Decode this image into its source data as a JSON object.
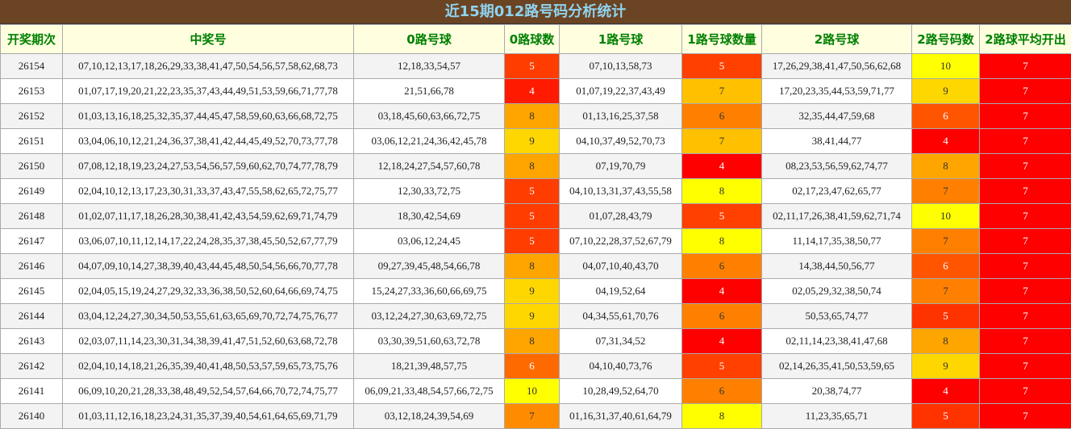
{
  "title": "近15期012路号码分析统计",
  "table": {
    "headers": [
      "开奖期次",
      "中奖号",
      "0路号球",
      "0路球数",
      "1路号球",
      "1路号球数量",
      "2路号球",
      "2路号码数",
      "2路球平均开出"
    ],
    "rows": [
      {
        "cells": [
          "26154",
          "07,10,12,13,17,18,26,29,33,38,41,47,50,54,56,57,58,62,68,73",
          "12,18,33,54,57",
          "5",
          "07,10,13,58,73",
          "5",
          "17,26,29,38,41,47,50,56,62,68",
          "10",
          "7"
        ],
        "colors": [
          "#ff3d00",
          "#ff4000",
          "#ffff00",
          "#ff0000"
        ]
      },
      {
        "cells": [
          "26153",
          "01,07,17,19,20,21,22,23,35,37,43,44,49,51,53,59,66,71,77,78",
          "21,51,66,78",
          "4",
          "01,07,19,22,37,43,49",
          "7",
          "17,20,23,35,44,53,59,71,77",
          "9",
          "7"
        ],
        "colors": [
          "#ff1a00",
          "#ffc000",
          "#ffd700",
          "#ff0000"
        ]
      },
      {
        "cells": [
          "26152",
          "01,03,13,16,18,25,32,35,37,44,45,47,58,59,60,63,66,68,72,75",
          "03,18,45,60,63,66,72,75",
          "8",
          "01,13,16,25,37,58",
          "6",
          "32,35,44,47,59,68",
          "6",
          "7"
        ],
        "colors": [
          "#ffa500",
          "#ff8000",
          "#ff5500",
          "#ff0000"
        ]
      },
      {
        "cells": [
          "26151",
          "03,04,06,10,12,21,24,36,37,38,41,42,44,45,49,52,70,73,77,78",
          "03,06,12,21,24,36,42,45,78",
          "9",
          "04,10,37,49,52,70,73",
          "7",
          "38,41,44,77",
          "4",
          "7"
        ],
        "colors": [
          "#ffd700",
          "#ffc000",
          "#ff0000",
          "#ff0000"
        ]
      },
      {
        "cells": [
          "26150",
          "07,08,12,18,19,23,24,27,53,54,56,57,59,60,62,70,74,77,78,79",
          "12,18,24,27,54,57,60,78",
          "8",
          "07,19,70,79",
          "4",
          "08,23,53,56,59,62,74,77",
          "8",
          "7"
        ],
        "colors": [
          "#ffa500",
          "#ff0000",
          "#ffa500",
          "#ff0000"
        ]
      },
      {
        "cells": [
          "26149",
          "02,04,10,12,13,17,23,30,31,33,37,43,47,55,58,62,65,72,75,77",
          "12,30,33,72,75",
          "5",
          "04,10,13,31,37,43,55,58",
          "8",
          "02,17,23,47,62,65,77",
          "7",
          "7"
        ],
        "colors": [
          "#ff3d00",
          "#ffff00",
          "#ff8000",
          "#ff0000"
        ]
      },
      {
        "cells": [
          "26148",
          "01,02,07,11,17,18,26,28,30,38,41,42,43,54,59,62,69,71,74,79",
          "18,30,42,54,69",
          "5",
          "01,07,28,43,79",
          "5",
          "02,11,17,26,38,41,59,62,71,74",
          "10",
          "7"
        ],
        "colors": [
          "#ff3d00",
          "#ff4000",
          "#ffff00",
          "#ff0000"
        ]
      },
      {
        "cells": [
          "26147",
          "03,06,07,10,11,12,14,17,22,24,28,35,37,38,45,50,52,67,77,79",
          "03,06,12,24,45",
          "5",
          "07,10,22,28,37,52,67,79",
          "8",
          "11,14,17,35,38,50,77",
          "7",
          "7"
        ],
        "colors": [
          "#ff3d00",
          "#ffff00",
          "#ff8000",
          "#ff0000"
        ]
      },
      {
        "cells": [
          "26146",
          "04,07,09,10,14,27,38,39,40,43,44,45,48,50,54,56,66,70,77,78",
          "09,27,39,45,48,54,66,78",
          "8",
          "04,07,10,40,43,70",
          "6",
          "14,38,44,50,56,77",
          "6",
          "7"
        ],
        "colors": [
          "#ffa500",
          "#ff8000",
          "#ff5500",
          "#ff0000"
        ]
      },
      {
        "cells": [
          "26145",
          "02,04,05,15,19,24,27,29,32,33,36,38,50,52,60,64,66,69,74,75",
          "15,24,27,33,36,60,66,69,75",
          "9",
          "04,19,52,64",
          "4",
          "02,05,29,32,38,50,74",
          "7",
          "7"
        ],
        "colors": [
          "#ffd700",
          "#ff0000",
          "#ff8000",
          "#ff0000"
        ]
      },
      {
        "cells": [
          "26144",
          "03,04,12,24,27,30,34,50,53,55,61,63,65,69,70,72,74,75,76,77",
          "03,12,24,27,30,63,69,72,75",
          "9",
          "04,34,55,61,70,76",
          "6",
          "50,53,65,74,77",
          "5",
          "7"
        ],
        "colors": [
          "#ffd700",
          "#ff8000",
          "#ff3300",
          "#ff0000"
        ]
      },
      {
        "cells": [
          "26143",
          "02,03,07,11,14,23,30,31,34,38,39,41,47,51,52,60,63,68,72,78",
          "03,30,39,51,60,63,72,78",
          "8",
          "07,31,34,52",
          "4",
          "02,11,14,23,38,41,47,68",
          "8",
          "7"
        ],
        "colors": [
          "#ffa500",
          "#ff0000",
          "#ffa500",
          "#ff0000"
        ]
      },
      {
        "cells": [
          "26142",
          "02,04,10,14,18,21,26,35,39,40,41,48,50,53,57,59,65,73,75,76",
          "18,21,39,48,57,75",
          "6",
          "04,10,40,73,76",
          "5",
          "02,14,26,35,41,50,53,59,65",
          "9",
          "7"
        ],
        "colors": [
          "#ff6a00",
          "#ff4000",
          "#ffd700",
          "#ff0000"
        ]
      },
      {
        "cells": [
          "26141",
          "06,09,10,20,21,28,33,38,48,49,52,54,57,64,66,70,72,74,75,77",
          "06,09,21,33,48,54,57,66,72,75",
          "10",
          "10,28,49,52,64,70",
          "6",
          "20,38,74,77",
          "4",
          "7"
        ],
        "colors": [
          "#ffff00",
          "#ff8000",
          "#ff0000",
          "#ff0000"
        ]
      },
      {
        "cells": [
          "26140",
          "01,03,11,12,16,18,23,24,31,35,37,39,40,54,61,64,65,69,71,79",
          "03,12,18,24,39,54,69",
          "7",
          "01,16,31,37,40,61,64,79",
          "8",
          "11,23,35,65,71",
          "5",
          "7"
        ],
        "colors": [
          "#ff8c00",
          "#ffff00",
          "#ff3300",
          "#ff0000"
        ]
      }
    ]
  }
}
